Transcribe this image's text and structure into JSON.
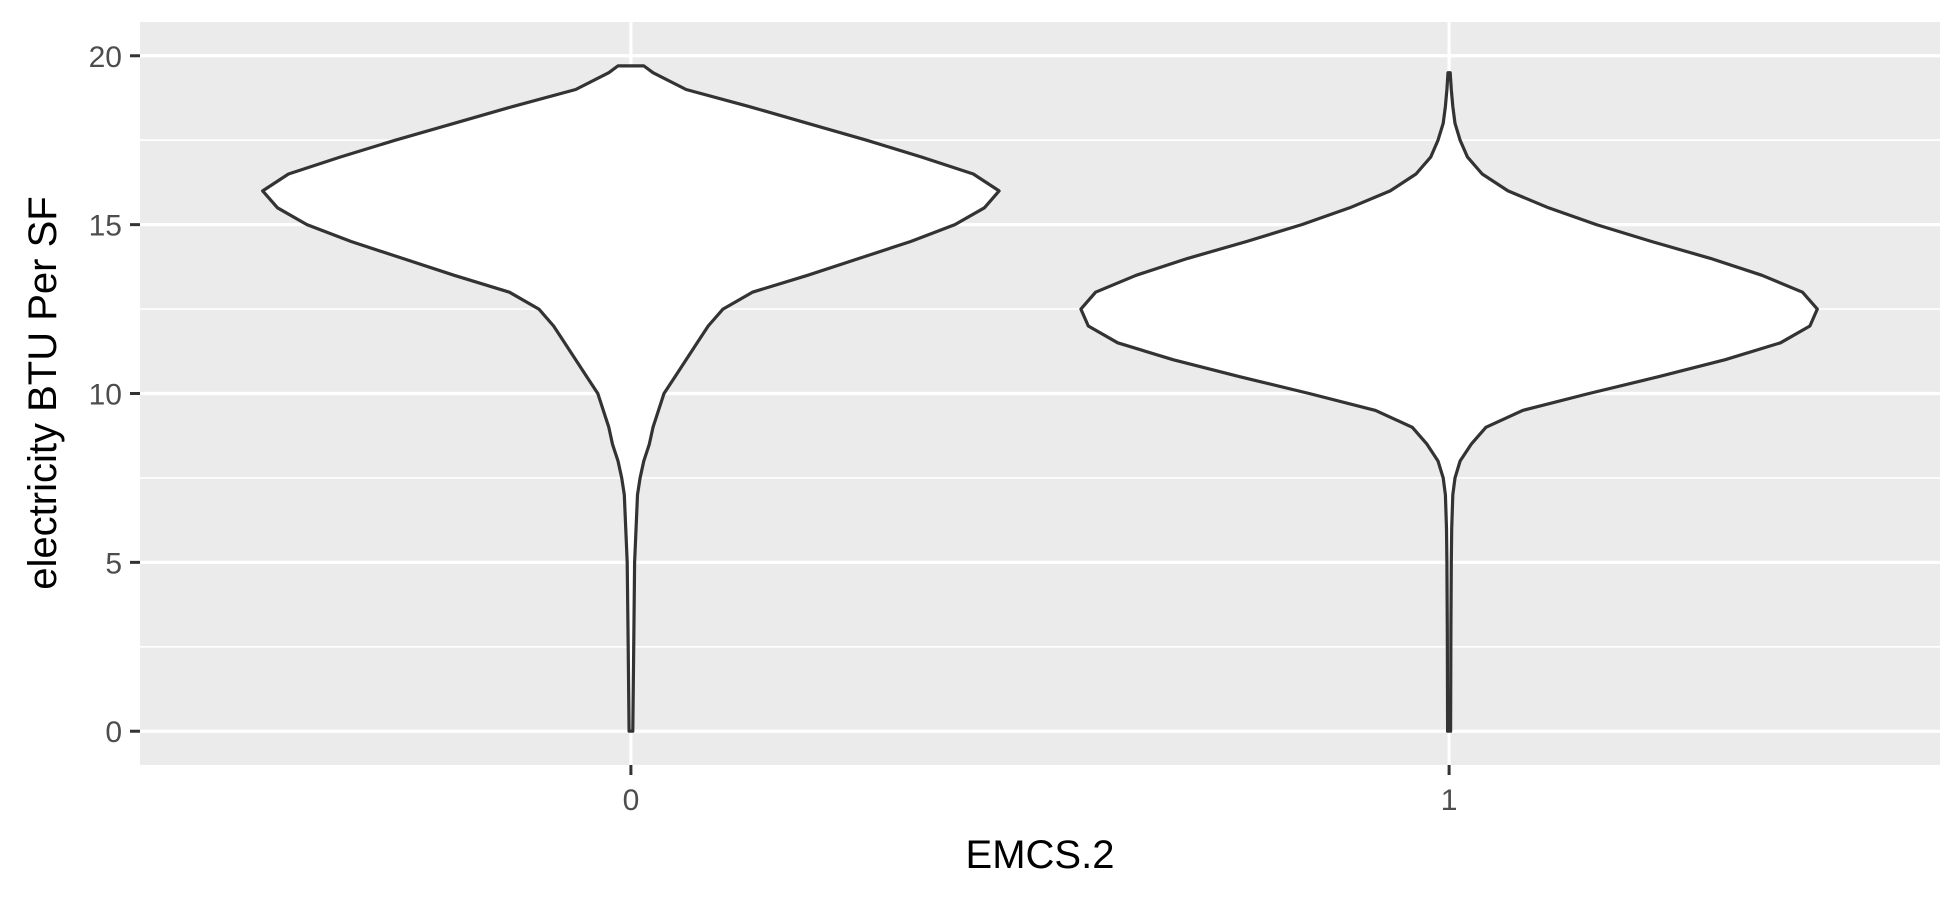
{
  "chart_data": {
    "type": "violin",
    "title": "",
    "xlabel": "EMCS.2",
    "ylabel": "electricity BTU Per SF",
    "categories": [
      "0",
      "1"
    ],
    "ylim": [
      -1,
      21
    ],
    "yticks": [
      0,
      5,
      10,
      15,
      20
    ],
    "grid": true,
    "legend": "none",
    "colors": {
      "panel": "#ebebeb",
      "grid": "#ffffff",
      "violin_fill": "#ffffff",
      "violin_stroke": "#333333",
      "tick_label": "#4d4d4d"
    },
    "series": [
      {
        "category": "0",
        "y_range": [
          0,
          19.7
        ],
        "density": [
          [
            0,
            0.005
          ],
          [
            3,
            0.008
          ],
          [
            5,
            0.01
          ],
          [
            7,
            0.018
          ],
          [
            7.5,
            0.025
          ],
          [
            8,
            0.035
          ],
          [
            8.5,
            0.05
          ],
          [
            9,
            0.06
          ],
          [
            9.5,
            0.075
          ],
          [
            10,
            0.09
          ],
          [
            10.5,
            0.12
          ],
          [
            11,
            0.15
          ],
          [
            11.5,
            0.18
          ],
          [
            12,
            0.21
          ],
          [
            12.5,
            0.25
          ],
          [
            13,
            0.33
          ],
          [
            13.5,
            0.48
          ],
          [
            14,
            0.62
          ],
          [
            14.5,
            0.76
          ],
          [
            15,
            0.88
          ],
          [
            15.5,
            0.96
          ],
          [
            16,
            1.0
          ],
          [
            16.5,
            0.93
          ],
          [
            17,
            0.79
          ],
          [
            17.5,
            0.64
          ],
          [
            18,
            0.48
          ],
          [
            18.5,
            0.32
          ],
          [
            19,
            0.15
          ],
          [
            19.5,
            0.06
          ],
          [
            19.7,
            0.035
          ]
        ]
      },
      {
        "category": "1",
        "y_range": [
          0,
          19.5
        ],
        "density": [
          [
            0,
            0.004
          ],
          [
            3,
            0.005
          ],
          [
            5,
            0.006
          ],
          [
            6,
            0.007
          ],
          [
            7,
            0.01
          ],
          [
            7.5,
            0.016
          ],
          [
            8,
            0.03
          ],
          [
            8.5,
            0.06
          ],
          [
            9,
            0.1
          ],
          [
            9.5,
            0.2
          ],
          [
            10,
            0.38
          ],
          [
            10.5,
            0.57
          ],
          [
            11,
            0.75
          ],
          [
            11.5,
            0.9
          ],
          [
            12,
            0.98
          ],
          [
            12.5,
            1.0
          ],
          [
            13,
            0.96
          ],
          [
            13.5,
            0.85
          ],
          [
            14,
            0.71
          ],
          [
            14.5,
            0.55
          ],
          [
            15,
            0.4
          ],
          [
            15.5,
            0.27
          ],
          [
            16,
            0.16
          ],
          [
            16.5,
            0.09
          ],
          [
            17,
            0.05
          ],
          [
            17.5,
            0.03
          ],
          [
            18,
            0.016
          ],
          [
            18.5,
            0.01
          ],
          [
            19,
            0.006
          ],
          [
            19.5,
            0.003
          ]
        ]
      }
    ]
  }
}
